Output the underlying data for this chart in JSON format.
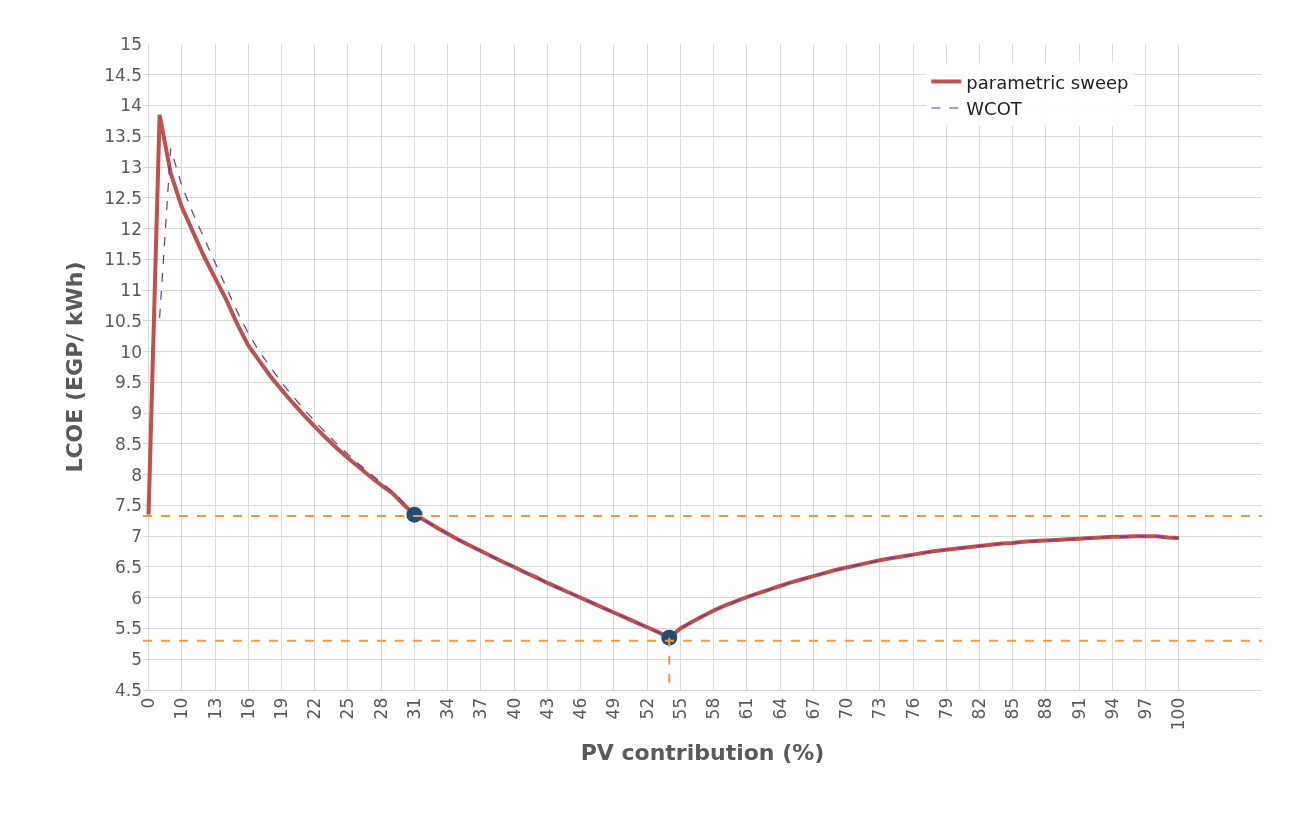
{
  "chart_data": {
    "type": "line",
    "xlabel": "PV contribution (%)",
    "ylabel": "LCOE (EGP/ kWh)",
    "categories": [
      "0",
      null,
      null,
      "10",
      null,
      null,
      "13",
      null,
      null,
      "16",
      null,
      null,
      "19",
      null,
      null,
      "22",
      null,
      null,
      "25",
      null,
      null,
      "28",
      null,
      null,
      "31",
      null,
      null,
      "34",
      null,
      null,
      "37",
      null,
      null,
      "40",
      null,
      null,
      "43",
      null,
      null,
      "46",
      null,
      null,
      "49",
      null,
      null,
      "52",
      null,
      null,
      "55",
      null,
      null,
      "58",
      null,
      null,
      "61",
      null,
      null,
      "64",
      null,
      null,
      "67",
      null,
      null,
      "70",
      null,
      null,
      "73",
      null,
      null,
      "76",
      null,
      null,
      "79",
      null,
      null,
      "82",
      null,
      null,
      "85",
      null,
      null,
      "88",
      null,
      null,
      "91",
      null,
      null,
      "94",
      null,
      null,
      "97",
      null,
      null,
      "100"
    ],
    "series": [
      {
        "name": "parametric sweep",
        "color": "#c0504d",
        "line_style": "solid",
        "values": [
          7.35,
          13.85,
          12.9,
          12.35,
          11.95,
          11.55,
          11.2,
          10.85,
          10.45,
          10.1,
          9.85,
          9.6,
          9.38,
          9.17,
          8.97,
          8.78,
          8.6,
          8.43,
          8.27,
          8.12,
          7.97,
          7.83,
          7.7,
          7.52,
          7.35,
          7.25,
          7.14,
          7.04,
          6.94,
          6.85,
          6.76,
          6.67,
          6.58,
          6.5,
          6.41,
          6.33,
          6.24,
          6.16,
          6.08,
          6.0,
          5.92,
          5.84,
          5.76,
          5.68,
          5.6,
          5.52,
          5.44,
          5.35,
          5.5,
          5.6,
          5.7,
          5.79,
          5.87,
          5.94,
          6.01,
          6.07,
          6.13,
          6.19,
          6.25,
          6.3,
          6.35,
          6.4,
          6.45,
          6.49,
          6.53,
          6.57,
          6.61,
          6.64,
          6.67,
          6.7,
          6.73,
          6.76,
          6.78,
          6.8,
          6.82,
          6.84,
          6.86,
          6.88,
          6.89,
          6.91,
          6.92,
          6.93,
          6.94,
          6.95,
          6.96,
          6.97,
          6.98,
          6.99,
          6.99,
          7.0,
          7.0,
          7.0,
          6.98,
          6.97
        ]
      },
      {
        "name": "WCOT",
        "color": "#7030a0",
        "line_style": "dashed",
        "values": [
          null,
          10.55,
          13.3,
          12.7,
          12.25,
          11.85,
          11.45,
          11.05,
          10.65,
          10.3,
          10.0,
          9.75,
          9.5,
          9.28,
          9.07,
          8.87,
          8.68,
          8.5,
          8.33,
          8.17,
          8.02,
          7.87,
          7.73,
          7.55,
          7.35,
          7.25,
          7.14,
          7.04,
          6.94,
          6.85,
          6.76,
          6.67,
          6.58,
          6.5,
          6.41,
          6.33,
          6.24,
          6.16,
          6.08,
          6.0,
          5.92,
          5.84,
          5.76,
          5.68,
          5.6,
          5.52,
          5.44,
          5.35,
          5.5,
          5.6,
          5.7,
          5.79,
          5.87,
          5.94,
          6.01,
          6.07,
          6.13,
          6.19,
          6.25,
          6.3,
          6.35,
          6.4,
          6.45,
          6.49,
          6.53,
          6.57,
          6.61,
          6.64,
          6.67,
          6.7,
          6.73,
          6.76,
          6.78,
          6.8,
          6.82,
          6.84,
          6.86,
          6.88,
          6.89,
          6.91,
          6.92,
          6.93,
          6.94,
          6.95,
          6.96,
          6.97,
          6.98,
          6.99,
          6.99,
          7.0,
          7.0,
          7.0,
          6.98,
          6.97
        ]
      },
      {
        "type": "scatter",
        "color": "#1f4e79",
        "marker": "circle",
        "values": [
          null,
          null,
          null,
          null,
          null,
          null,
          null,
          null,
          null,
          null,
          null,
          null,
          null,
          null,
          null,
          null,
          null,
          null,
          null,
          null,
          null,
          null,
          null,
          null,
          7.35,
          null,
          null,
          null,
          null,
          null,
          null,
          null,
          null,
          null,
          null,
          null,
          null,
          null,
          null,
          null,
          null,
          null,
          null,
          null,
          null,
          null,
          null,
          5.35,
          null,
          null,
          null,
          null,
          null,
          null,
          null,
          null,
          null,
          null,
          null,
          null,
          null,
          null,
          null,
          null,
          null,
          null,
          null,
          null,
          null,
          null,
          null,
          null,
          null,
          null,
          null,
          null,
          null,
          null,
          null,
          null,
          null,
          null,
          null,
          null,
          null,
          null,
          null,
          null,
          null,
          null,
          null,
          null,
          null,
          null
        ]
      }
    ],
    "ylim": [
      4.5,
      15
    ],
    "yticks": [
      4.5,
      5,
      5.5,
      6,
      6.5,
      7,
      7.5,
      8,
      8.5,
      9,
      9.5,
      10,
      10.5,
      11,
      11.5,
      12,
      12.5,
      13,
      13.5,
      14,
      14.5,
      15
    ],
    "ref_lines": [
      {
        "axis": "y",
        "value": 7.33,
        "color": "#f79646",
        "line_style": "dashed"
      },
      {
        "axis": "y",
        "value": 5.3,
        "color": "#f79646",
        "line_style": "dashed"
      }
    ],
    "grid": true,
    "legend": "top right",
    "marker": "none"
  }
}
